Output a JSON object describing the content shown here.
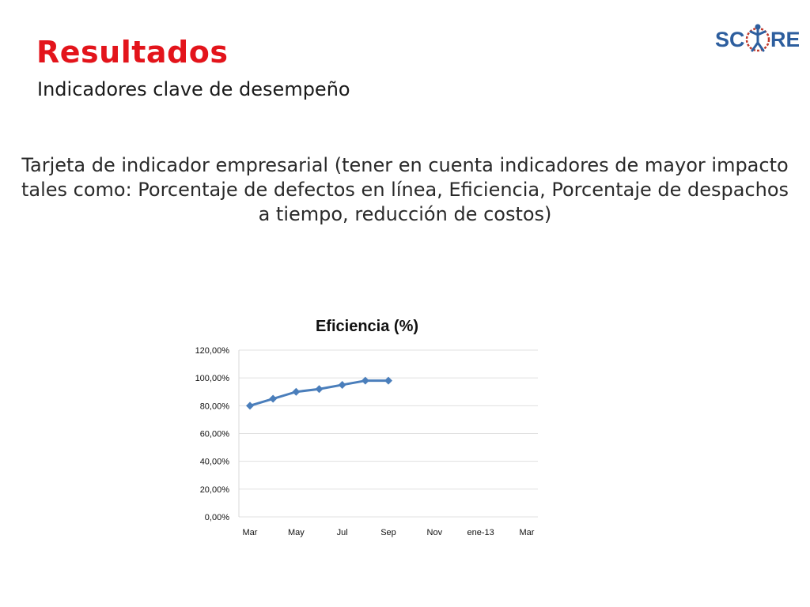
{
  "header": {
    "title": "Resultados",
    "subtitle": "Indicadores clave de desempeño"
  },
  "logo": {
    "text_left": "SC",
    "text_right": "RE",
    "colors": {
      "text": "#2d5e9e",
      "ring": "#c0392b",
      "figure": "#2d5e9e"
    }
  },
  "body": {
    "lines": [
      "Tarjeta de indicador empresarial (tener en cuenta indicadores de mayor impacto",
      "tales como: Porcentaje de defectos en línea, Eficiencia, Porcentaje de despachos",
      "a tiempo, reducción de costos)"
    ]
  },
  "colors": {
    "title": "#e3141b",
    "series": "#4a7ebb",
    "gridline": "#e0e0e0"
  },
  "chart_data": {
    "type": "line",
    "title": "Eficiencia (%)",
    "xlabel": "",
    "ylabel": "",
    "x_tick_labels": [
      "Mar",
      "May",
      "Jul",
      "Sep",
      "Nov",
      "ene-13",
      "Mar"
    ],
    "y_tick_labels": [
      "0,00%",
      "20,00%",
      "40,00%",
      "60,00%",
      "80,00%",
      "100,00%",
      "120,00%"
    ],
    "ylim": [
      0,
      1.2
    ],
    "x_range_months": 12,
    "grid": true,
    "legend": "none",
    "series": [
      {
        "points": [
          {
            "x": "Mar",
            "y": 0.8
          },
          {
            "x": "Apr",
            "y": 0.85
          },
          {
            "x": "May",
            "y": 0.9
          },
          {
            "x": "Jun",
            "y": 0.92
          },
          {
            "x": "Jul",
            "y": 0.95
          },
          {
            "x": "Aug",
            "y": 0.98
          },
          {
            "x": "Sep",
            "y": 0.98
          }
        ]
      }
    ]
  }
}
